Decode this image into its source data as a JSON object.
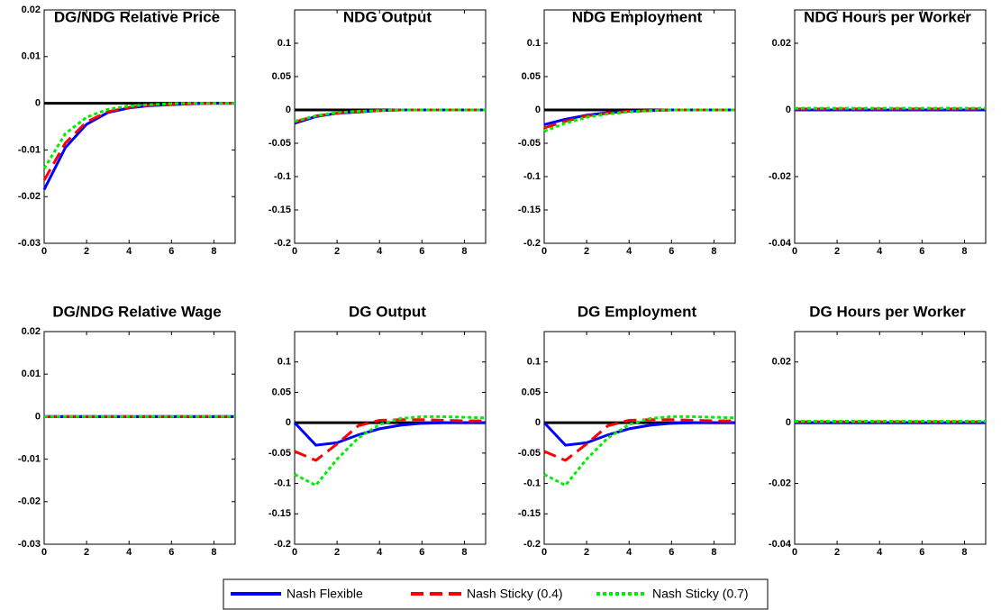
{
  "chart_data": [
    {
      "type": "line",
      "title": "DG/NDG Relative Price",
      "x": [
        0,
        1,
        2,
        3,
        4,
        5,
        6,
        7,
        8,
        9
      ],
      "xlim": [
        0,
        9
      ],
      "xticks": [
        0,
        2,
        4,
        6,
        8
      ],
      "ylim": [
        -0.03,
        0.02
      ],
      "yticks": [
        -0.03,
        -0.02,
        -0.01,
        0,
        0.01,
        0.02
      ],
      "zero_line": true,
      "series": [
        {
          "name": "Nash Flexible",
          "color": "#0000ff",
          "style": "solid",
          "values": [
            -0.0185,
            -0.0095,
            -0.0045,
            -0.002,
            -0.001,
            -0.0005,
            -0.0003,
            -0.0001,
            0,
            0
          ]
        },
        {
          "name": "Nash Sticky (0.4)",
          "color": "#ff0000",
          "style": "dashed",
          "values": [
            -0.0165,
            -0.0085,
            -0.004,
            -0.0018,
            -0.0009,
            -0.0004,
            -0.0002,
            -0.0001,
            0,
            0
          ]
        },
        {
          "name": "Nash Sticky (0.7)",
          "color": "#00ee00",
          "style": "dotted",
          "values": [
            -0.014,
            -0.0065,
            -0.003,
            -0.0013,
            -0.0006,
            -0.0003,
            -0.0001,
            0,
            0,
            0
          ]
        }
      ]
    },
    {
      "type": "line",
      "title": "NDG Output",
      "x": [
        0,
        1,
        2,
        3,
        4,
        5,
        6,
        7,
        8,
        9
      ],
      "xlim": [
        0,
        9
      ],
      "xticks": [
        0,
        2,
        4,
        6,
        8
      ],
      "ylim": [
        -0.2,
        0.15
      ],
      "yticks": [
        -0.2,
        -0.15,
        -0.1,
        -0.05,
        0,
        0.05,
        0.1
      ],
      "zero_line": true,
      "series": [
        {
          "name": "Nash Flexible",
          "color": "#0000ff",
          "style": "solid",
          "values": [
            -0.02,
            -0.01,
            -0.005,
            -0.003,
            -0.001,
            0,
            0,
            0,
            0,
            0
          ]
        },
        {
          "name": "Nash Sticky (0.4)",
          "color": "#ff0000",
          "style": "dashed",
          "values": [
            -0.018,
            -0.009,
            -0.005,
            -0.002,
            -0.001,
            0,
            0,
            0,
            0,
            0
          ]
        },
        {
          "name": "Nash Sticky (0.7)",
          "color": "#00ee00",
          "style": "dotted",
          "values": [
            -0.017,
            -0.009,
            -0.004,
            -0.002,
            -0.001,
            0,
            0,
            0,
            0,
            0
          ]
        }
      ]
    },
    {
      "type": "line",
      "title": "NDG Employment",
      "x": [
        0,
        1,
        2,
        3,
        4,
        5,
        6,
        7,
        8,
        9
      ],
      "xlim": [
        0,
        9
      ],
      "xticks": [
        0,
        2,
        4,
        6,
        8
      ],
      "ylim": [
        -0.2,
        0.15
      ],
      "yticks": [
        -0.2,
        -0.15,
        -0.1,
        -0.05,
        0,
        0.05,
        0.1
      ],
      "zero_line": true,
      "series": [
        {
          "name": "Nash Flexible",
          "color": "#0000ff",
          "style": "solid",
          "values": [
            -0.022,
            -0.014,
            -0.008,
            -0.004,
            -0.002,
            -0.001,
            0,
            0,
            0,
            0
          ]
        },
        {
          "name": "Nash Sticky (0.4)",
          "color": "#ff0000",
          "style": "dashed",
          "values": [
            -0.027,
            -0.017,
            -0.009,
            -0.005,
            -0.002,
            -0.001,
            0,
            0,
            0,
            0
          ]
        },
        {
          "name": "Nash Sticky (0.7)",
          "color": "#00ee00",
          "style": "dotted",
          "values": [
            -0.032,
            -0.02,
            -0.011,
            -0.006,
            -0.003,
            -0.001,
            0,
            0,
            0,
            0
          ]
        }
      ]
    },
    {
      "type": "line",
      "title": "NDG Hours per Worker",
      "x": [
        0,
        1,
        2,
        3,
        4,
        5,
        6,
        7,
        8,
        9
      ],
      "xlim": [
        0,
        9
      ],
      "xticks": [
        0,
        2,
        4,
        6,
        8
      ],
      "ylim": [
        -0.04,
        0.03
      ],
      "yticks": [
        -0.04,
        -0.02,
        0,
        0.02
      ],
      "zero_line": true,
      "series": [
        {
          "name": "Nash Flexible",
          "color": "#0000ff",
          "style": "solid",
          "values": [
            0,
            0,
            0,
            0,
            0,
            0,
            0,
            0,
            0,
            0
          ]
        },
        {
          "name": "Nash Sticky (0.4)",
          "color": "#ff0000",
          "style": "dashed",
          "values": [
            0.0003,
            0.0003,
            0.0003,
            0.0003,
            0.0003,
            0.0003,
            0.0003,
            0.0003,
            0.0003,
            0.0003
          ]
        },
        {
          "name": "Nash Sticky (0.7)",
          "color": "#00ee00",
          "style": "dotted",
          "values": [
            0.0005,
            0.0005,
            0.0005,
            0.0005,
            0.0005,
            0.0005,
            0.0005,
            0.0005,
            0.0005,
            0.0005
          ]
        }
      ]
    },
    {
      "type": "line",
      "title": "DG/NDG Relative Wage",
      "x": [
        0,
        1,
        2,
        3,
        4,
        5,
        6,
        7,
        8,
        9
      ],
      "xlim": [
        0,
        9
      ],
      "xticks": [
        0,
        2,
        4,
        6,
        8
      ],
      "ylim": [
        -0.03,
        0.02
      ],
      "yticks": [
        -0.03,
        -0.02,
        -0.01,
        0,
        0.01,
        0.02
      ],
      "zero_line": true,
      "series": [
        {
          "name": "Nash Flexible",
          "color": "#0000ff",
          "style": "solid",
          "values": [
            0,
            0,
            0,
            0,
            0,
            0,
            0,
            0,
            0,
            0
          ]
        },
        {
          "name": "Nash Sticky (0.4)",
          "color": "#ff0000",
          "style": "dashed",
          "values": [
            0,
            0,
            0,
            0,
            0,
            0,
            0,
            0,
            0,
            0
          ]
        },
        {
          "name": "Nash Sticky (0.7)",
          "color": "#00ee00",
          "style": "dotted",
          "values": [
            0,
            0,
            0,
            0,
            0,
            0,
            0,
            0,
            0,
            0
          ]
        }
      ]
    },
    {
      "type": "line",
      "title": "DG Output",
      "x": [
        0,
        1,
        2,
        3,
        4,
        5,
        6,
        7,
        8,
        9
      ],
      "xlim": [
        0,
        9
      ],
      "xticks": [
        0,
        2,
        4,
        6,
        8
      ],
      "ylim": [
        -0.2,
        0.15
      ],
      "yticks": [
        -0.2,
        -0.15,
        -0.1,
        -0.05,
        0,
        0.05,
        0.1
      ],
      "zero_line": true,
      "series": [
        {
          "name": "Nash Flexible",
          "color": "#0000ff",
          "style": "solid",
          "values": [
            0,
            -0.037,
            -0.033,
            -0.02,
            -0.01,
            -0.004,
            -0.001,
            0,
            0,
            0
          ]
        },
        {
          "name": "Nash Sticky (0.4)",
          "color": "#ff0000",
          "style": "dashed",
          "values": [
            -0.047,
            -0.062,
            -0.035,
            -0.005,
            0.004,
            0.005,
            0.005,
            0.004,
            0.003,
            0.003
          ]
        },
        {
          "name": "Nash Sticky (0.7)",
          "color": "#00ee00",
          "style": "dotted",
          "values": [
            -0.085,
            -0.103,
            -0.06,
            -0.025,
            -0.003,
            0.007,
            0.01,
            0.01,
            0.009,
            0.008
          ]
        }
      ]
    },
    {
      "type": "line",
      "title": "DG Employment",
      "x": [
        0,
        1,
        2,
        3,
        4,
        5,
        6,
        7,
        8,
        9
      ],
      "xlim": [
        0,
        9
      ],
      "xticks": [
        0,
        2,
        4,
        6,
        8
      ],
      "ylim": [
        -0.2,
        0.15
      ],
      "yticks": [
        -0.2,
        -0.15,
        -0.1,
        -0.05,
        0,
        0.05,
        0.1
      ],
      "zero_line": true,
      "series": [
        {
          "name": "Nash Flexible",
          "color": "#0000ff",
          "style": "solid",
          "values": [
            0,
            -0.037,
            -0.033,
            -0.02,
            -0.01,
            -0.004,
            -0.001,
            0,
            0,
            0
          ]
        },
        {
          "name": "Nash Sticky (0.4)",
          "color": "#ff0000",
          "style": "dashed",
          "values": [
            -0.047,
            -0.062,
            -0.035,
            -0.005,
            0.004,
            0.005,
            0.005,
            0.004,
            0.003,
            0.003
          ]
        },
        {
          "name": "Nash Sticky (0.7)",
          "color": "#00ee00",
          "style": "dotted",
          "values": [
            -0.085,
            -0.103,
            -0.06,
            -0.025,
            -0.003,
            0.007,
            0.01,
            0.01,
            0.009,
            0.008
          ]
        }
      ]
    },
    {
      "type": "line",
      "title": "DG Hours per Worker",
      "x": [
        0,
        1,
        2,
        3,
        4,
        5,
        6,
        7,
        8,
        9
      ],
      "xlim": [
        0,
        9
      ],
      "xticks": [
        0,
        2,
        4,
        6,
        8
      ],
      "ylim": [
        -0.04,
        0.03
      ],
      "yticks": [
        -0.04,
        -0.02,
        0,
        0.02
      ],
      "zero_line": true,
      "series": [
        {
          "name": "Nash Flexible",
          "color": "#0000ff",
          "style": "solid",
          "values": [
            0,
            0,
            0,
            0,
            0,
            0,
            0,
            0,
            0,
            0
          ]
        },
        {
          "name": "Nash Sticky (0.4)",
          "color": "#ff0000",
          "style": "dashed",
          "values": [
            0.0003,
            0.0003,
            0.0003,
            0.0003,
            0.0003,
            0.0003,
            0.0003,
            0.0003,
            0.0003,
            0.0003
          ]
        },
        {
          "name": "Nash Sticky (0.7)",
          "color": "#00ee00",
          "style": "dotted",
          "values": [
            0.0005,
            0.0005,
            0.0005,
            0.0005,
            0.0005,
            0.0005,
            0.0005,
            0.0005,
            0.0005,
            0.0005
          ]
        }
      ]
    }
  ]
}
